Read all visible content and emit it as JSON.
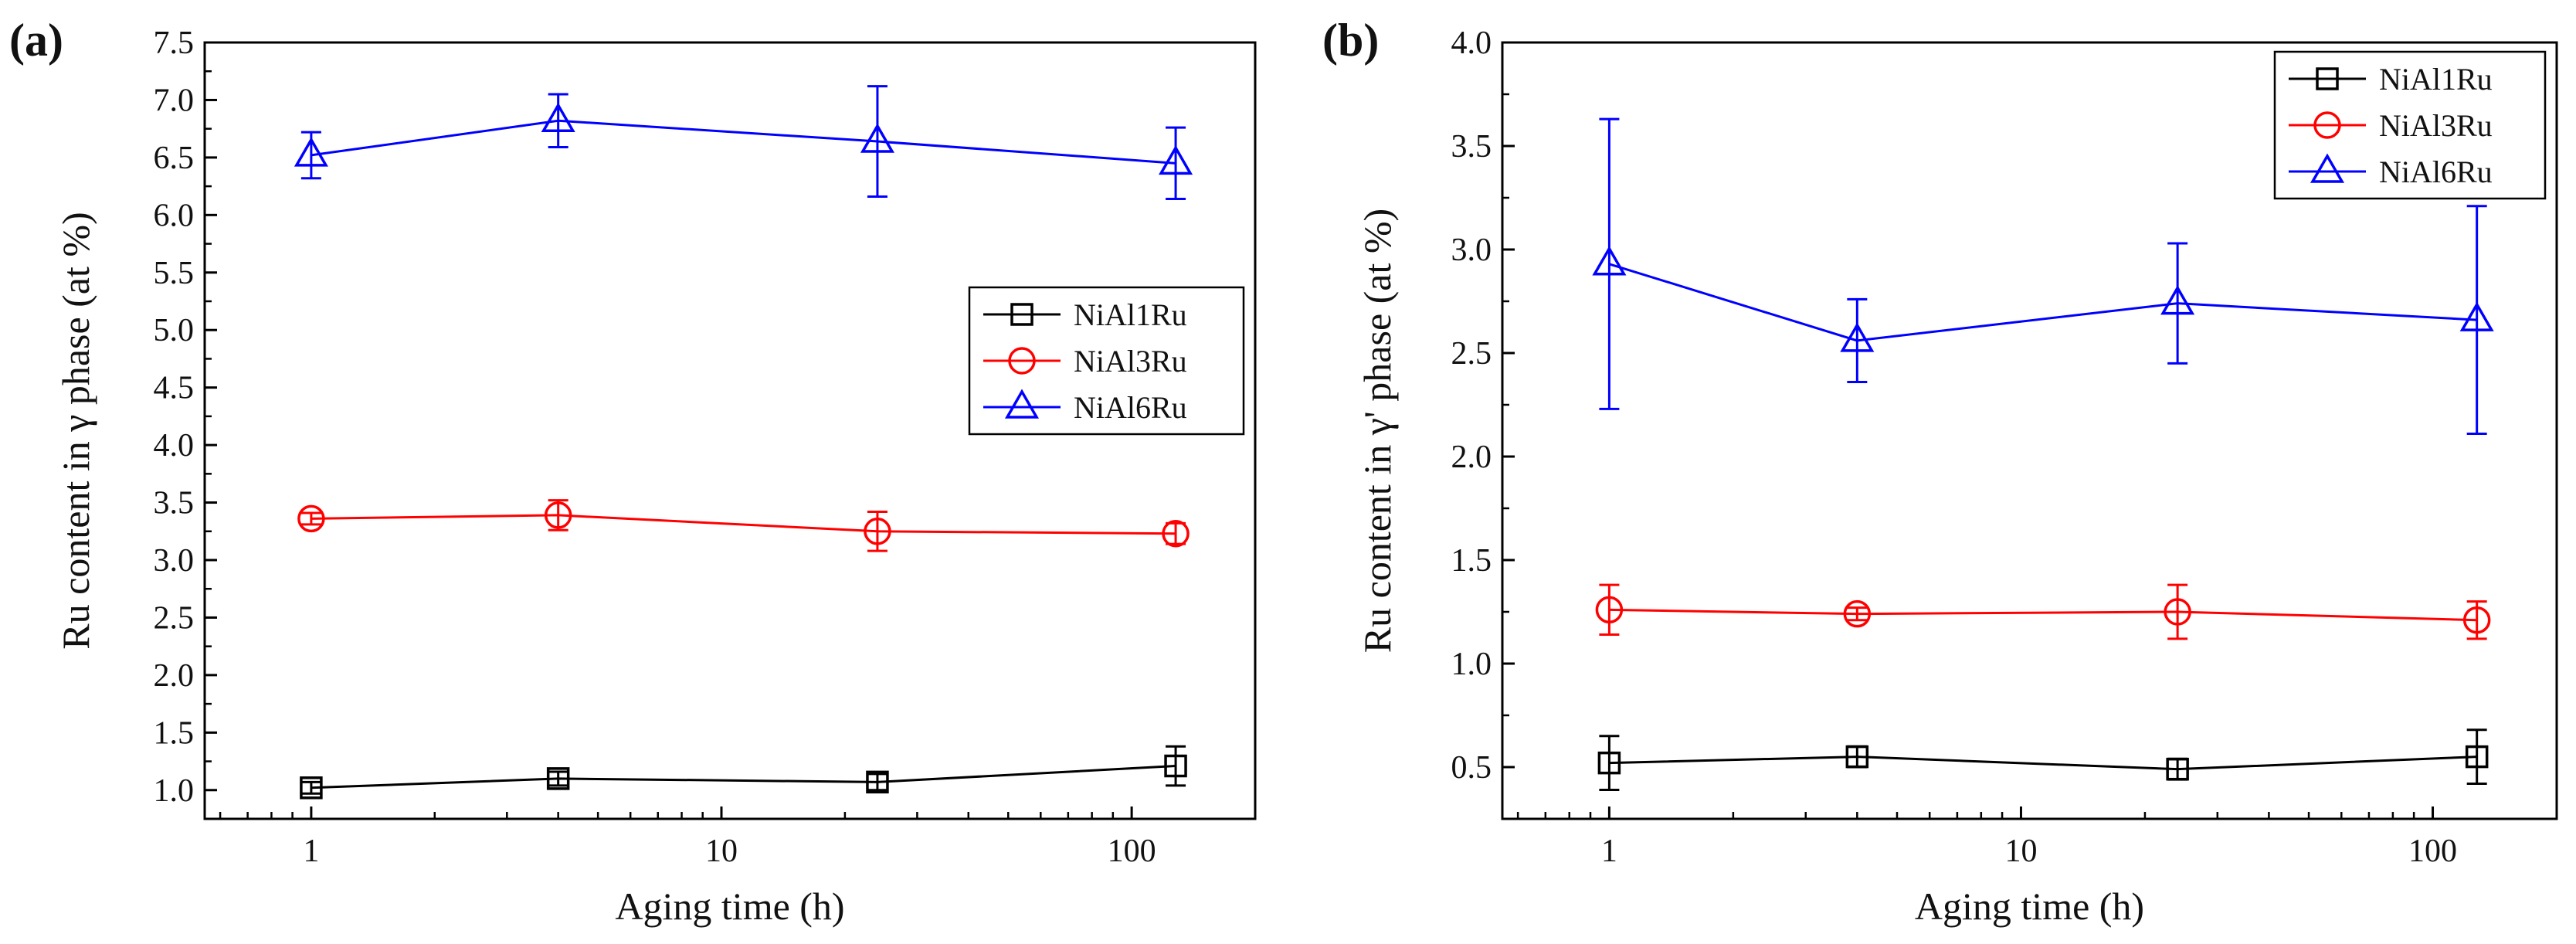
{
  "figure": {
    "panel_labels": [
      "(a)",
      "(b)"
    ]
  },
  "chart_data": [
    {
      "type": "line",
      "panel": "(a)",
      "title": "",
      "xlabel": "Aging time (h)",
      "ylabel": "Ru content in γ phase (at %)",
      "xscale": "log",
      "xlim": [
        0.55,
        200
      ],
      "ylim": [
        0.75,
        7.5
      ],
      "x_ticks": [
        1,
        10,
        100
      ],
      "x_tick_labels": [
        "1",
        "10",
        "100"
      ],
      "y_ticks": [
        1.0,
        1.5,
        2.0,
        2.5,
        3.0,
        3.5,
        4.0,
        4.5,
        5.0,
        5.5,
        6.0,
        6.5,
        7.0,
        7.5
      ],
      "y_tick_labels": [
        "1.0",
        "1.5",
        "2.0",
        "2.5",
        "3.0",
        "3.5",
        "4.0",
        "4.5",
        "5.0",
        "5.5",
        "6.0",
        "6.5",
        "7.0",
        "7.5"
      ],
      "legend_position": "middle-right",
      "x": [
        1,
        4,
        24,
        128
      ],
      "series": [
        {
          "name": "NiAl1Ru",
          "color": "#000000",
          "marker": "square",
          "values": [
            1.02,
            1.1,
            1.07,
            1.21
          ],
          "errors": [
            0.05,
            0.06,
            0.07,
            0.17
          ]
        },
        {
          "name": "NiAl3Ru",
          "color": "#ff0000",
          "marker": "circle",
          "values": [
            3.36,
            3.39,
            3.25,
            3.23
          ],
          "errors": [
            0.05,
            0.13,
            0.17,
            0.09
          ]
        },
        {
          "name": "NiAl6Ru",
          "color": "#0000ff",
          "marker": "triangle",
          "values": [
            6.52,
            6.82,
            6.64,
            6.45
          ],
          "errors": [
            0.2,
            0.23,
            0.48,
            0.31
          ]
        }
      ]
    },
    {
      "type": "line",
      "panel": "(b)",
      "title": "",
      "xlabel": "Aging time (h)",
      "ylabel": "Ru content in γ' phase (at %)",
      "xscale": "log",
      "xlim": [
        0.55,
        200
      ],
      "ylim": [
        0.25,
        4.0
      ],
      "x_ticks": [
        1,
        10,
        100
      ],
      "x_tick_labels": [
        "1",
        "10",
        "100"
      ],
      "y_ticks": [
        0.5,
        1.0,
        1.5,
        2.0,
        2.5,
        3.0,
        3.5,
        4.0
      ],
      "y_tick_labels": [
        "0.5",
        "1.0",
        "1.5",
        "2.0",
        "2.5",
        "3.0",
        "3.5",
        "4.0"
      ],
      "legend_position": "top-right",
      "x": [
        1,
        4,
        24,
        128
      ],
      "series": [
        {
          "name": "NiAl1Ru",
          "color": "#000000",
          "marker": "square",
          "values": [
            0.52,
            0.55,
            0.49,
            0.55
          ],
          "errors": [
            0.13,
            0.05,
            0.05,
            0.13
          ]
        },
        {
          "name": "NiAl3Ru",
          "color": "#ff0000",
          "marker": "circle",
          "values": [
            1.26,
            1.24,
            1.25,
            1.21
          ],
          "errors": [
            0.12,
            0.03,
            0.13,
            0.09
          ]
        },
        {
          "name": "NiAl6Ru",
          "color": "#0000ff",
          "marker": "triangle",
          "values": [
            2.93,
            2.56,
            2.74,
            2.66
          ],
          "errors": [
            0.7,
            0.2,
            0.29,
            0.55
          ]
        }
      ]
    }
  ]
}
